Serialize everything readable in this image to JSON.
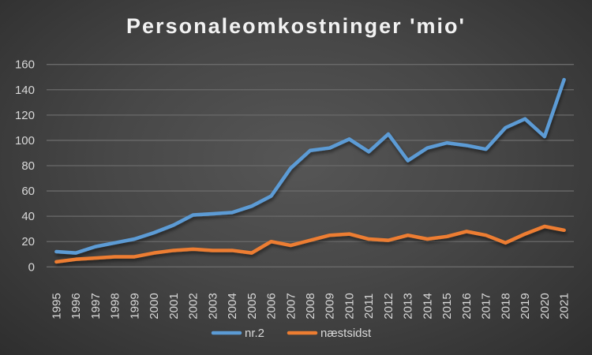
{
  "chart_data": {
    "type": "line",
    "title": "Personaleomkostninger 'mio'",
    "xlabel": "",
    "ylabel": "",
    "ylim": [
      0,
      160
    ],
    "yticks": [
      0,
      20,
      40,
      60,
      80,
      100,
      120,
      140,
      160
    ],
    "grid": true,
    "legend_position": "bottom",
    "categories": [
      "1995",
      "1996",
      "1997",
      "1998",
      "1999",
      "2000",
      "2001",
      "2002",
      "2003",
      "2004",
      "2005",
      "2006",
      "2007",
      "2008",
      "2009",
      "2010",
      "2011",
      "2012",
      "2013",
      "2014",
      "2015",
      "2016",
      "2017",
      "2018",
      "2019",
      "2020",
      "2021"
    ],
    "series": [
      {
        "name": "nr.2",
        "color": "#5b9bd5",
        "values": [
          12,
          11,
          16,
          19,
          22,
          27,
          33,
          41,
          42,
          43,
          48,
          56,
          78,
          92,
          94,
          101,
          91,
          105,
          84,
          94,
          98,
          96,
          93,
          110,
          117,
          103,
          148
        ]
      },
      {
        "name": "næstsidst",
        "color": "#ed7d31",
        "values": [
          4,
          6,
          7,
          8,
          8,
          11,
          13,
          14,
          13,
          13,
          11,
          20,
          17,
          21,
          25,
          26,
          22,
          21,
          25,
          22,
          24,
          28,
          25,
          19,
          26,
          32,
          29
        ]
      }
    ]
  }
}
